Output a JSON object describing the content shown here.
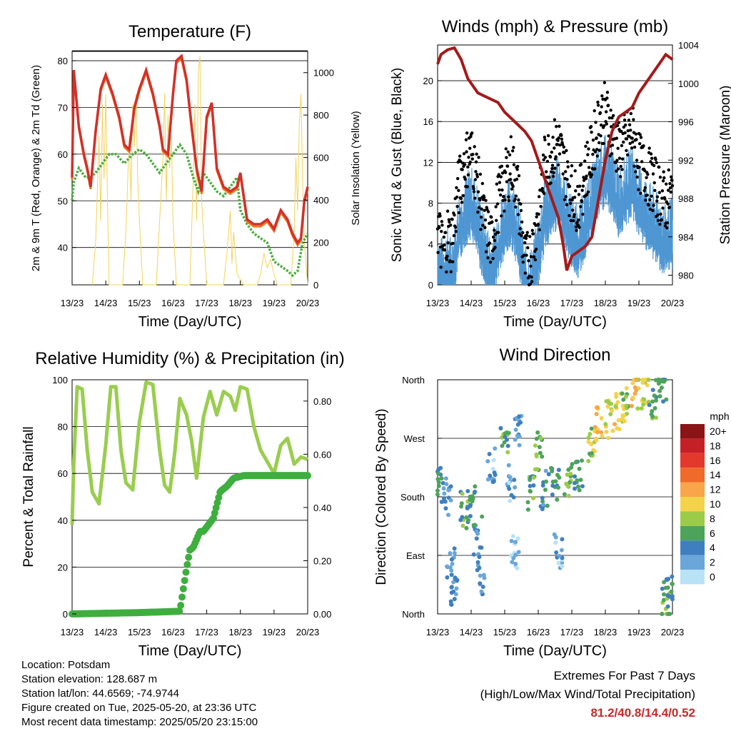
{
  "time_ticks": [
    "13/23",
    "14/23",
    "15/23",
    "16/23",
    "17/23",
    "18/23",
    "19/23",
    "20/23"
  ],
  "xlabel": "Time (Day/UTC)",
  "chart_data": [
    {
      "id": "temperature",
      "type": "line",
      "title": "Temperature (F)",
      "xlabel": "Time (Day/UTC)",
      "ylabel": "2m & 9m T (Red, Orange) & 2m Td (Green)",
      "ylabel_right": "Solar Insolation (Yellow)",
      "ylim": [
        32,
        82
      ],
      "yticks": [
        40,
        50,
        60,
        70,
        80
      ],
      "ylim_right": [
        0,
        1100
      ],
      "yticks_right": [
        0,
        200,
        400,
        600,
        800,
        1000
      ],
      "x_units": "days since 13/23 UTC",
      "colors": {
        "t2m": "#d3302a",
        "t9m": "#f07a22",
        "td": "#4cae3e",
        "solar": "#f2d45a"
      },
      "series": [
        {
          "key": "t2m",
          "x": [
            0,
            0.05,
            0.2,
            0.35,
            0.45,
            0.55,
            0.7,
            0.85,
            1.0,
            1.2,
            1.4,
            1.55,
            1.7,
            1.85,
            2.0,
            2.2,
            2.4,
            2.6,
            2.7,
            2.85,
            3.0,
            3.1,
            3.25,
            3.4,
            3.55,
            3.7,
            3.85,
            4.0,
            4.15,
            4.3,
            4.5,
            4.7,
            4.9,
            5.0,
            5.2,
            5.4,
            5.6,
            5.8,
            6.0,
            6.2,
            6.4,
            6.55,
            6.7,
            6.8,
            6.9,
            7.0
          ],
          "y": [
            55,
            78,
            66,
            60,
            57,
            53,
            65,
            74,
            77,
            73,
            68,
            62,
            61,
            70,
            74,
            78,
            73,
            66,
            61,
            60,
            73,
            80,
            81,
            76,
            66,
            57,
            52,
            68,
            71,
            57,
            53,
            52,
            53,
            56,
            46,
            45,
            45,
            46,
            44,
            48,
            46,
            43,
            41,
            42,
            50,
            53
          ]
        },
        {
          "key": "td",
          "x": [
            0,
            0.05,
            0.2,
            0.4,
            0.55,
            0.7,
            0.9,
            1.1,
            1.3,
            1.55,
            1.8,
            2.0,
            2.2,
            2.4,
            2.6,
            2.8,
            3.0,
            3.2,
            3.4,
            3.6,
            3.75,
            3.9,
            4.1,
            4.3,
            4.5,
            4.7,
            4.9,
            5.0,
            5.2,
            5.4,
            5.6,
            5.8,
            6.0,
            6.2,
            6.4,
            6.55,
            6.7,
            6.85,
            7.0
          ],
          "y": [
            50,
            54,
            57,
            55,
            55,
            56,
            58,
            60,
            60,
            58,
            60,
            61,
            60,
            58,
            56,
            58,
            60,
            62,
            60,
            55,
            52,
            56,
            54,
            52,
            51,
            53,
            55,
            48,
            45,
            43,
            42,
            41,
            37,
            36,
            35,
            34,
            35,
            41,
            43
          ]
        }
      ],
      "solar_series": {
        "x": [
          0.6,
          0.7,
          0.75,
          0.8,
          0.85,
          0.9,
          0.95,
          1.0,
          1.05,
          1.1,
          1.5,
          1.6,
          1.7,
          1.75,
          1.8,
          1.85,
          1.9,
          1.95,
          2.0,
          2.1,
          2.5,
          2.6,
          2.7,
          2.75,
          2.8,
          2.85,
          2.9,
          2.95,
          3.0,
          3.1,
          3.5,
          3.6,
          3.65,
          3.7,
          3.75,
          3.8,
          3.85,
          3.9,
          4.0,
          4.1,
          4.5,
          4.6,
          4.7,
          4.75,
          4.8,
          4.9,
          5.1,
          5.5,
          5.6,
          5.7,
          5.8,
          5.9,
          6.0,
          6.1,
          6.5,
          6.6,
          6.65,
          6.7,
          6.75,
          6.8,
          6.85,
          6.9,
          7.0
        ],
        "y": [
          0,
          200,
          450,
          700,
          300,
          850,
          500,
          900,
          400,
          0,
          0,
          250,
          700,
          400,
          850,
          650,
          900,
          500,
          300,
          0,
          0,
          300,
          600,
          900,
          400,
          800,
          550,
          700,
          300,
          0,
          0,
          500,
          850,
          300,
          1000,
          1080,
          400,
          250,
          0,
          0,
          0,
          150,
          350,
          100,
          250,
          50,
          0,
          0,
          50,
          150,
          80,
          120,
          50,
          0,
          0,
          250,
          600,
          350,
          750,
          900,
          500,
          200,
          0
        ]
      }
    },
    {
      "id": "winds",
      "type": "scatter",
      "title": "Winds (mph) & Pressure (mb)",
      "xlabel": "Time (Day/UTC)",
      "ylabel": "Sonic Wind & Gust (Blue, Black)",
      "ylabel_right": "Station Pressure (Maroon)",
      "ylim": [
        0,
        23.5
      ],
      "yticks": [
        0,
        4,
        8,
        12,
        16,
        20
      ],
      "ylim_right": [
        979,
        1004
      ],
      "yticks_right": [
        980,
        984,
        988,
        992,
        996,
        1000,
        1004
      ],
      "x_units": "days since 13/23 UTC",
      "colors": {
        "wind": "#4f97d3",
        "gust": "#000000",
        "pressure": "#a51a1a"
      },
      "wind_series": {
        "x": [
          0,
          0.1,
          0.2,
          0.3,
          0.4,
          0.5,
          0.6,
          0.8,
          1.0,
          1.2,
          1.4,
          1.6,
          1.8,
          2.0,
          2.2,
          2.4,
          2.6,
          2.8,
          3.0,
          3.2,
          3.4,
          3.6,
          3.8,
          4.0,
          4.2,
          4.4,
          4.6,
          4.8,
          5.0,
          5.2,
          5.4,
          5.6,
          5.8,
          6.0,
          6.2,
          6.4,
          6.6,
          6.8,
          7.0
        ],
        "y": [
          3,
          2,
          2,
          3,
          2,
          3,
          6,
          8,
          9,
          7,
          4,
          2,
          5,
          7,
          8,
          6,
          1,
          1,
          4,
          8,
          9,
          10,
          8,
          6,
          5,
          7,
          9,
          11,
          12,
          11,
          9,
          10,
          11,
          9,
          8,
          7,
          6,
          5,
          6
        ]
      },
      "gust_series": {
        "x": [
          0,
          0.1,
          0.2,
          0.3,
          0.4,
          0.5,
          0.6,
          0.8,
          1.0,
          1.2,
          1.4,
          1.6,
          1.8,
          2.0,
          2.2,
          2.4,
          2.6,
          2.8,
          3.0,
          3.2,
          3.4,
          3.6,
          3.8,
          4.0,
          4.2,
          4.4,
          4.6,
          4.8,
          5.0,
          5.2,
          5.4,
          5.6,
          5.8,
          6.0,
          6.2,
          6.4,
          6.6,
          6.8,
          7.0
        ],
        "y": [
          6,
          4,
          3,
          5,
          4,
          6,
          9,
          12,
          13,
          10,
          6,
          4,
          8,
          10,
          12,
          9,
          2,
          3,
          7,
          12,
          13,
          14,
          11,
          9,
          8,
          11,
          13,
          16,
          17,
          15,
          13,
          14,
          15,
          12,
          11,
          10,
          9,
          8,
          9
        ]
      },
      "pressure_series": {
        "x": [
          0,
          0.1,
          0.3,
          0.5,
          0.7,
          0.9,
          1.0,
          1.2,
          1.5,
          1.8,
          2.0,
          2.3,
          2.6,
          2.8,
          3.0,
          3.2,
          3.4,
          3.6,
          3.75,
          3.85,
          4.0,
          4.2,
          4.4,
          4.6,
          4.8,
          5.0,
          5.2,
          5.4,
          5.6,
          5.8,
          6.0,
          6.2,
          6.4,
          6.6,
          6.8,
          7.0
        ],
        "y": [
          1002,
          1003,
          1003.5,
          1003.7,
          1002.5,
          1000.5,
          1000,
          999,
          998.5,
          998,
          997,
          996,
          995,
          994,
          992,
          990,
          988,
          986,
          983,
          980.5,
          982,
          982.5,
          983,
          984,
          988,
          992,
          995,
          996.5,
          997,
          997.5,
          999,
          1000,
          1001,
          1002,
          1003,
          1002.5
        ]
      }
    },
    {
      "id": "humidity",
      "type": "line",
      "title": "Relative Humidity (%) & Precipitation (in)",
      "xlabel": "Time (Day/UTC)",
      "ylabel": "Percent & Total Rainfall",
      "ylim": [
        0,
        100
      ],
      "yticks": [
        0,
        20,
        40,
        60,
        80,
        100
      ],
      "ylim_right": [
        0,
        0.88
      ],
      "yticks_right": [
        0.0,
        0.2,
        0.4,
        0.6,
        0.8
      ],
      "yticklabels_right": [
        "0.00",
        "0.20",
        "0.40",
        "0.60",
        "0.80"
      ],
      "x_units": "days since 13/23 UTC",
      "colors": {
        "rh": "#9acd4f",
        "precip": "#3eae3e"
      },
      "series": [
        {
          "key": "rh",
          "x": [
            0,
            0.05,
            0.15,
            0.3,
            0.45,
            0.6,
            0.8,
            1.0,
            1.15,
            1.3,
            1.45,
            1.6,
            1.8,
            2.0,
            2.2,
            2.4,
            2.6,
            2.75,
            2.9,
            3.05,
            3.2,
            3.4,
            3.55,
            3.7,
            3.9,
            4.1,
            4.3,
            4.5,
            4.7,
            4.85,
            5.0,
            5.2,
            5.4,
            5.6,
            5.8,
            6.0,
            6.2,
            6.4,
            6.6,
            6.8,
            7.0
          ],
          "y": [
            38,
            65,
            97,
            96,
            70,
            52,
            47,
            72,
            97,
            97,
            70,
            56,
            53,
            82,
            99,
            98,
            70,
            55,
            52,
            69,
            92,
            85,
            74,
            58,
            84,
            95,
            85,
            95,
            93,
            87,
            97,
            96,
            80,
            70,
            65,
            60,
            72,
            75,
            64,
            67,
            66
          ]
        },
        {
          "key": "precip",
          "x": [
            0,
            2.0,
            3.2,
            3.4,
            3.5,
            3.6,
            3.8,
            3.9,
            4.2,
            4.4,
            4.6,
            4.8,
            5.1,
            5.3,
            6.0,
            7.0
          ],
          "y": [
            0,
            0.005,
            0.01,
            0.17,
            0.24,
            0.25,
            0.31,
            0.31,
            0.36,
            0.46,
            0.48,
            0.51,
            0.52,
            0.52,
            0.52,
            0.52
          ]
        }
      ]
    },
    {
      "id": "direction",
      "type": "scatter",
      "title": "Wind Direction",
      "xlabel": "Time (Day/UTC)",
      "ylabel": "Direction (Colored By Speed)",
      "yticklabels": [
        "North",
        "East",
        "South",
        "West",
        "North"
      ],
      "ylim": [
        0,
        360
      ],
      "x_units": "days since 13/23 UTC",
      "legend_title": "mph",
      "legend_labels": [
        "20+",
        "18",
        "16",
        "14",
        "12",
        "10",
        "8",
        "6",
        "4",
        "2",
        "0"
      ],
      "legend_colors": [
        "#8b1416",
        "#c62027",
        "#e3392d",
        "#f06a2a",
        "#f9a54a",
        "#f4d24a",
        "#9ccb48",
        "#4ea35a",
        "#3f7fc0",
        "#6aa6d9",
        "#b8e2f6"
      ],
      "clusters": [
        {
          "x": 0.05,
          "y": 200,
          "speed": 5
        },
        {
          "x": 0.3,
          "y": 180,
          "speed": 3
        },
        {
          "x": 0.4,
          "y": 80,
          "speed": 2
        },
        {
          "x": 0.5,
          "y": 40,
          "speed": 3
        },
        {
          "x": 0.8,
          "y": 160,
          "speed": 6
        },
        {
          "x": 1.0,
          "y": 180,
          "speed": 5
        },
        {
          "x": 1.2,
          "y": 120,
          "speed": 4
        },
        {
          "x": 1.3,
          "y": 60,
          "speed": 3
        },
        {
          "x": 1.6,
          "y": 230,
          "speed": 2
        },
        {
          "x": 2.0,
          "y": 260,
          "speed": 6
        },
        {
          "x": 2.2,
          "y": 200,
          "speed": 2
        },
        {
          "x": 2.3,
          "y": 90,
          "speed": 1
        },
        {
          "x": 2.4,
          "y": 280,
          "speed": 3
        },
        {
          "x": 2.8,
          "y": 190,
          "speed": 6
        },
        {
          "x": 3.0,
          "y": 250,
          "speed": 7
        },
        {
          "x": 3.2,
          "y": 190,
          "speed": 4
        },
        {
          "x": 3.5,
          "y": 200,
          "speed": 5
        },
        {
          "x": 3.6,
          "y": 100,
          "speed": 2
        },
        {
          "x": 3.9,
          "y": 210,
          "speed": 7
        },
        {
          "x": 4.2,
          "y": 210,
          "speed": 5
        },
        {
          "x": 4.6,
          "y": 265,
          "speed": 8
        },
        {
          "x": 4.8,
          "y": 290,
          "speed": 11
        },
        {
          "x": 5.1,
          "y": 300,
          "speed": 9
        },
        {
          "x": 5.4,
          "y": 310,
          "speed": 10
        },
        {
          "x": 5.6,
          "y": 320,
          "speed": 8
        },
        {
          "x": 5.9,
          "y": 340,
          "speed": 10
        },
        {
          "x": 6.2,
          "y": 345,
          "speed": 9
        },
        {
          "x": 6.4,
          "y": 330,
          "speed": 6
        },
        {
          "x": 6.7,
          "y": 355,
          "speed": 5
        },
        {
          "x": 6.8,
          "y": 20,
          "speed": 6
        },
        {
          "x": 6.95,
          "y": 40,
          "speed": 5
        }
      ]
    }
  ],
  "info": {
    "location": "Location: Potsdam",
    "elevation": "Station elevation: 128.687 m",
    "latlon": "Station lat/lon: 44.6569; -74.9744",
    "created": "Figure created on Tue, 2025-05-20, at 23:36 UTC",
    "recent": "Most recent data timestamp: 2025/05/20 23:15:00"
  },
  "extremes": {
    "line1": "Extremes For Past 7 Days",
    "line2": "(High/Low/Max Wind/Total Precipitation)",
    "values": "81.2/40.8/14.4/0.52"
  }
}
